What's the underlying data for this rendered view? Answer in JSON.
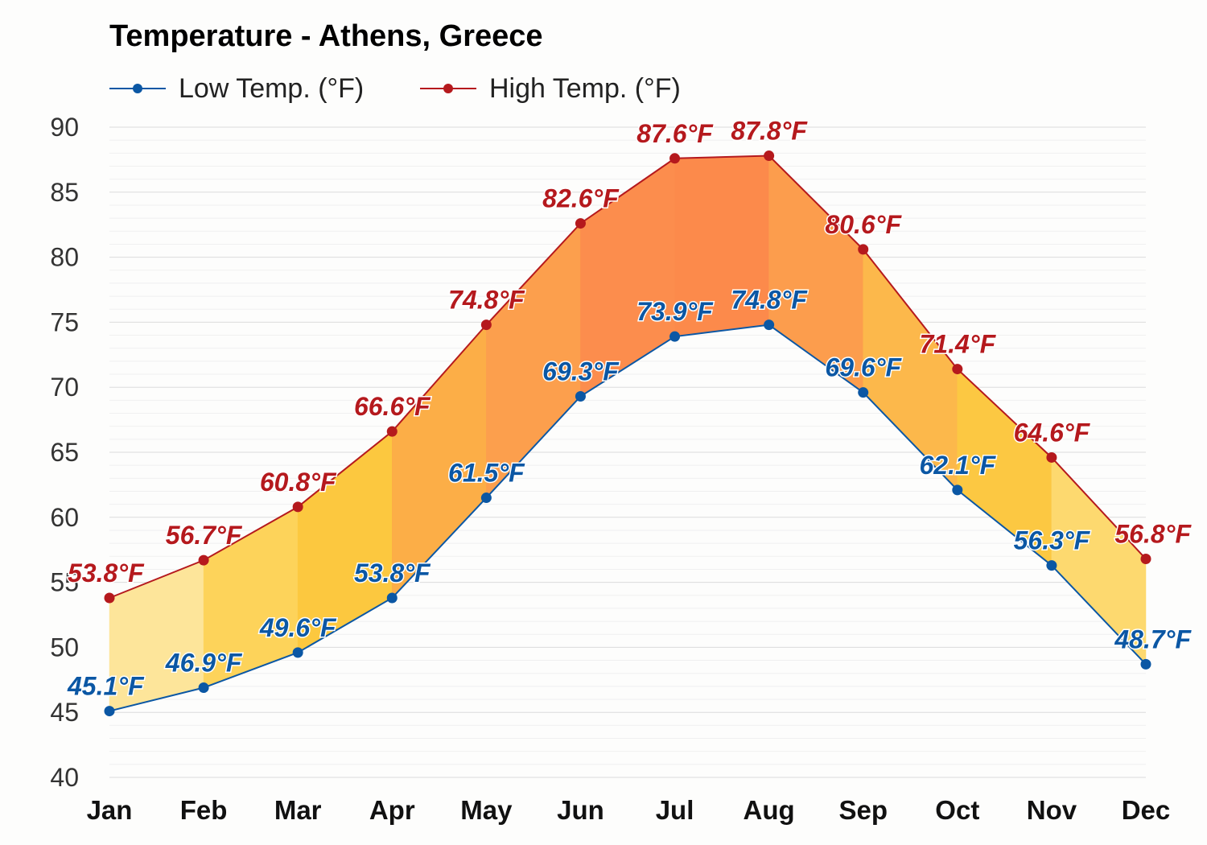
{
  "chart_data": {
    "type": "area",
    "title": "Temperature - Athens, Greece",
    "xlabel": "",
    "ylabel": "",
    "categories": [
      "Jan",
      "Feb",
      "Mar",
      "Apr",
      "May",
      "Jun",
      "Jul",
      "Aug",
      "Sep",
      "Oct",
      "Nov",
      "Dec"
    ],
    "ylim": [
      40,
      90
    ],
    "yticks": [
      40,
      45,
      50,
      55,
      60,
      65,
      70,
      75,
      80,
      85,
      90
    ],
    "grid": true,
    "legend_position": "top-left",
    "series": [
      {
        "name": "Low Temp. (°F)",
        "color": "#0b57a4",
        "values": [
          45.1,
          46.9,
          49.6,
          53.8,
          61.5,
          69.3,
          73.9,
          74.8,
          69.6,
          62.1,
          56.3,
          48.7
        ],
        "labels": [
          "45.1°F",
          "46.9°F",
          "49.6°F",
          "53.8°F",
          "61.5°F",
          "69.3°F",
          "73.9°F",
          "74.8°F",
          "69.6°F",
          "62.1°F",
          "56.3°F",
          "48.7°F"
        ]
      },
      {
        "name": "High Temp. (°F)",
        "color": "#b5191d",
        "values": [
          53.8,
          56.7,
          60.8,
          66.6,
          74.8,
          82.6,
          87.6,
          87.8,
          80.6,
          71.4,
          64.6,
          56.8
        ],
        "labels": [
          "53.8°F",
          "56.7°F",
          "60.8°F",
          "66.6°F",
          "74.8°F",
          "82.6°F",
          "87.6°F",
          "87.8°F",
          "80.6°F",
          "71.4°F",
          "64.6°F",
          "56.8°F"
        ]
      }
    ],
    "band_colors": [
      "#fde59a",
      "#fdd35a",
      "#fcc83f",
      "#fcae47",
      "#fc9f4d",
      "#fc8d4d",
      "#fc8a4b",
      "#fc9d4d",
      "#fcb84b",
      "#fcc842",
      "#fdd96f",
      "#fde598"
    ]
  }
}
